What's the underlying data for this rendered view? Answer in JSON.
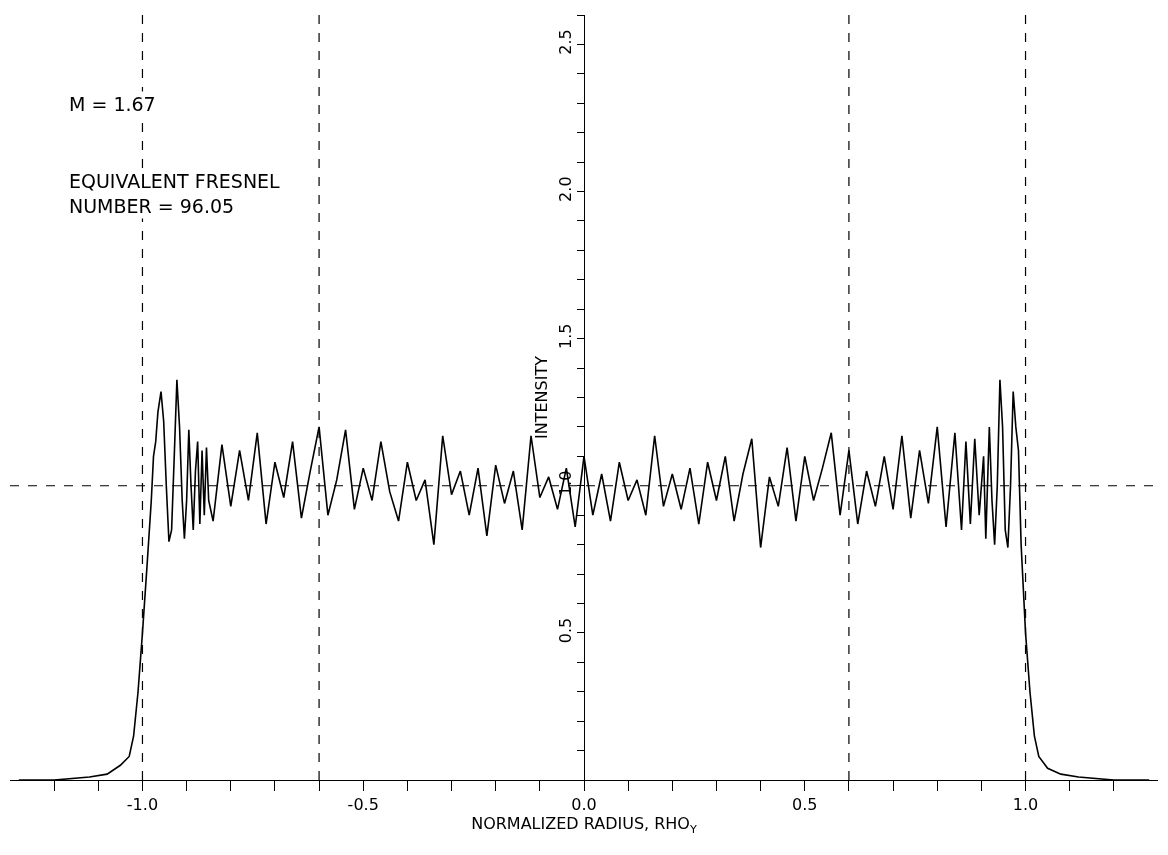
{
  "chart_data": {
    "type": "line",
    "xlabel": "NORMALIZED RADIUS, RHO$_{Y}$",
    "ylabel": "INTENSITY",
    "annotations": [
      "M = 1.67",
      "EQUIVALENT FRESNEL\nNUMBER = 96.05"
    ],
    "x": [
      -1.28,
      -1.2,
      -1.12,
      -1.08,
      -1.05,
      -1.03,
      -1.02,
      -1.01,
      -1.0,
      -0.99,
      -0.98,
      -0.975,
      -0.97,
      -0.965,
      -0.958,
      -0.952,
      -0.946,
      -0.94,
      -0.934,
      -0.928,
      -0.922,
      -0.916,
      -0.91,
      -0.905,
      -0.9,
      -0.895,
      -0.89,
      -0.885,
      -0.88,
      -0.875,
      -0.87,
      -0.865,
      -0.86,
      -0.855,
      -0.85,
      -0.84,
      -0.82,
      -0.8,
      -0.78,
      -0.76,
      -0.74,
      -0.72,
      -0.7,
      -0.68,
      -0.66,
      -0.64,
      -0.62,
      -0.6,
      -0.58,
      -0.56,
      -0.54,
      -0.52,
      -0.5,
      -0.48,
      -0.46,
      -0.44,
      -0.42,
      -0.4,
      -0.38,
      -0.36,
      -0.34,
      -0.32,
      -0.3,
      -0.28,
      -0.26,
      -0.24,
      -0.22,
      -0.2,
      -0.18,
      -0.16,
      -0.14,
      -0.12,
      -0.1,
      -0.08,
      -0.06,
      -0.04,
      -0.02,
      0.0,
      0.02,
      0.04,
      0.06,
      0.08,
      0.1,
      0.12,
      0.14,
      0.16,
      0.18,
      0.2,
      0.22,
      0.24,
      0.26,
      0.28,
      0.3,
      0.32,
      0.34,
      0.36,
      0.38,
      0.4,
      0.42,
      0.44,
      0.46,
      0.48,
      0.5,
      0.52,
      0.54,
      0.56,
      0.58,
      0.6,
      0.62,
      0.64,
      0.66,
      0.68,
      0.7,
      0.72,
      0.74,
      0.76,
      0.78,
      0.8,
      0.82,
      0.84,
      0.855,
      0.865,
      0.875,
      0.885,
      0.895,
      0.905,
      0.91,
      0.918,
      0.924,
      0.93,
      0.936,
      0.942,
      0.948,
      0.954,
      0.96,
      0.966,
      0.972,
      0.978,
      0.984,
      0.99,
      1.0,
      1.01,
      1.02,
      1.03,
      1.05,
      1.08,
      1.12,
      1.2,
      1.28
    ],
    "series": [
      {
        "color": "#000000",
        "values": [
          0.0,
          0.0,
          0.01,
          0.02,
          0.05,
          0.08,
          0.15,
          0.3,
          0.5,
          0.72,
          0.95,
          1.1,
          1.15,
          1.25,
          1.32,
          1.22,
          1.0,
          0.81,
          0.85,
          1.1,
          1.36,
          1.2,
          0.95,
          0.82,
          0.95,
          1.19,
          1.0,
          0.85,
          1.05,
          1.15,
          0.87,
          1.12,
          0.9,
          1.13,
          0.95,
          0.88,
          1.14,
          0.93,
          1.12,
          0.95,
          1.18,
          0.87,
          1.08,
          0.96,
          1.15,
          0.89,
          1.05,
          1.2,
          0.9,
          1.02,
          1.19,
          0.92,
          1.06,
          0.95,
          1.15,
          0.98,
          0.88,
          1.08,
          0.95,
          1.02,
          0.8,
          1.17,
          0.97,
          1.05,
          0.9,
          1.06,
          0.83,
          1.07,
          0.94,
          1.05,
          0.85,
          1.17,
          0.96,
          1.03,
          0.92,
          1.06,
          0.86,
          1.1,
          0.9,
          1.04,
          0.88,
          1.08,
          0.95,
          1.02,
          0.9,
          1.17,
          0.93,
          1.04,
          0.92,
          1.06,
          0.87,
          1.08,
          0.95,
          1.1,
          0.88,
          1.04,
          1.16,
          0.79,
          1.03,
          0.93,
          1.13,
          0.88,
          1.1,
          0.95,
          1.06,
          1.18,
          0.9,
          1.12,
          0.87,
          1.05,
          0.93,
          1.1,
          0.92,
          1.17,
          0.89,
          1.12,
          0.94,
          1.2,
          0.86,
          1.18,
          0.85,
          1.15,
          0.87,
          1.16,
          0.9,
          1.1,
          0.82,
          1.2,
          0.95,
          0.8,
          1.0,
          1.36,
          1.2,
          0.85,
          0.79,
          1.0,
          1.32,
          1.2,
          1.12,
          0.8,
          0.5,
          0.3,
          0.15,
          0.08,
          0.04,
          0.02,
          0.01,
          0.0,
          0.0
        ]
      }
    ],
    "xlim": [
      -1.3,
      1.3
    ],
    "xticks": [
      {
        "value": -1.2,
        "label": null
      },
      {
        "value": -1.1,
        "label": null
      },
      {
        "value": -1.0,
        "label": "-1.0"
      },
      {
        "value": -0.9,
        "label": null
      },
      {
        "value": -0.8,
        "label": null
      },
      {
        "value": -0.7,
        "label": null
      },
      {
        "value": -0.6,
        "label": null
      },
      -0.5,
      {
        "value": -0.4,
        "label": null
      },
      {
        "value": -0.3,
        "label": null
      },
      {
        "value": -0.2,
        "label": null
      },
      {
        "value": -0.1,
        "label": null
      },
      {
        "value": 0.0,
        "label": "0.0"
      },
      {
        "value": 0.1,
        "label": null
      },
      {
        "value": 0.2,
        "label": null
      },
      {
        "value": 0.3,
        "label": null
      },
      {
        "value": 0.4,
        "label": null
      },
      0.5,
      {
        "value": 0.6,
        "label": null
      },
      {
        "value": 0.7,
        "label": null
      },
      {
        "value": 0.8,
        "label": null
      },
      {
        "value": 0.9,
        "label": null
      },
      {
        "value": 1.0,
        "label": "1.0"
      },
      {
        "value": 1.1,
        "label": null
      },
      {
        "value": 1.2,
        "label": null
      }
    ],
    "ylim": [
      0,
      2.6
    ],
    "yticks": [
      {
        "value": 0.1,
        "label": null
      },
      {
        "value": 0.2,
        "label": null
      },
      {
        "value": 0.3,
        "label": null
      },
      {
        "value": 0.4,
        "label": null
      },
      0.5,
      {
        "value": 0.6,
        "label": null
      },
      {
        "value": 0.7,
        "label": null
      },
      {
        "value": 0.8,
        "label": null
      },
      {
        "value": 0.9,
        "label": null
      },
      {
        "value": 1.0,
        "label": "1.0"
      },
      {
        "value": 1.1,
        "label": null
      },
      {
        "value": 1.2,
        "label": null
      },
      {
        "value": 1.3,
        "label": null
      },
      {
        "value": 1.4,
        "label": null
      },
      1.5,
      {
        "value": 1.6,
        "label": null
      },
      {
        "value": 1.7,
        "label": null
      },
      {
        "value": 1.8,
        "label": null
      },
      {
        "value": 1.9,
        "label": null
      },
      {
        "value": 2.0,
        "label": "2.0"
      },
      {
        "value": 2.1,
        "label": null
      },
      {
        "value": 2.2,
        "label": null
      },
      {
        "value": 2.3,
        "label": null
      },
      {
        "value": 2.4,
        "label": null
      },
      2.5,
      {
        "value": 2.6,
        "label": null
      }
    ],
    "ref_lines": [
      {
        "axis": "x",
        "value": -1.0,
        "color": "#000000",
        "line_style": "dashed"
      },
      {
        "axis": "x",
        "value": -0.6,
        "color": "#000000",
        "line_style": "dashed"
      },
      {
        "axis": "x",
        "value": 0.6,
        "color": "#000000",
        "line_style": "dashed"
      },
      {
        "axis": "x",
        "value": 1.0,
        "color": "#000000",
        "line_style": "dashed"
      },
      {
        "axis": "y",
        "value": 1.0,
        "color": "#000000",
        "line_style": "dashed"
      }
    ],
    "line_style": "solid"
  }
}
